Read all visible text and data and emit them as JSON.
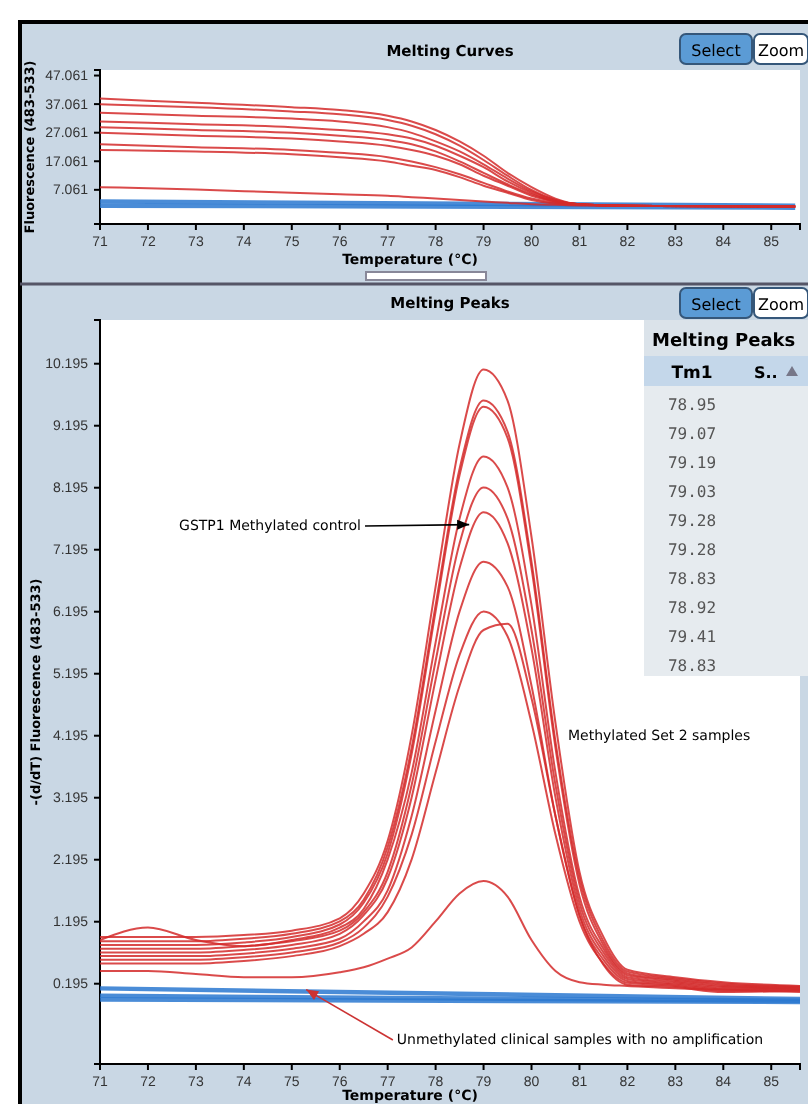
{
  "chart_data": [
    {
      "type": "line",
      "title": "Melting Curves",
      "xlabel": "Temperature (°C)",
      "ylabel": "Fluorescence (483-533)",
      "xlim": [
        71,
        85.6
      ],
      "ylim": [
        -4.9,
        49
      ],
      "xticks": [
        71,
        72,
        73,
        74,
        75,
        76,
        77,
        78,
        79,
        80,
        81,
        82,
        83,
        84,
        85
      ],
      "yticks": [
        7.061,
        17.061,
        27.061,
        37.061,
        47.061
      ],
      "x": [
        71,
        73,
        75,
        76,
        77,
        77.5,
        78,
        78.5,
        79,
        79.5,
        80,
        80.5,
        81,
        82,
        84,
        85.5
      ],
      "annotations": [
        "Select",
        "Zoom"
      ],
      "series": [
        {
          "color": "#2a78d0",
          "x": [
            71,
            85.5
          ],
          "values": [
            3,
            1.5
          ]
        },
        {
          "color": "#2a78d0",
          "x": [
            71,
            85.5
          ],
          "values": [
            1.5,
            0.8
          ]
        },
        {
          "color": "#d42a2a",
          "values": [
            39,
            37.5,
            36,
            35,
            33,
            31,
            28,
            24,
            19,
            13,
            8,
            4,
            2,
            1.5,
            1.3,
            1.2
          ]
        },
        {
          "color": "#d42a2a",
          "values": [
            37,
            36,
            34.5,
            33.5,
            31.5,
            29.5,
            26.5,
            22.5,
            17.5,
            12,
            7,
            3.5,
            2,
            1.5,
            1.3,
            1.2
          ]
        },
        {
          "color": "#d42a2a",
          "values": [
            34,
            33,
            32,
            31,
            29,
            27,
            24,
            20.5,
            16,
            11,
            6.5,
            3.5,
            2,
            1.5,
            1.3,
            1.2
          ]
        },
        {
          "color": "#d42a2a",
          "values": [
            31,
            30,
            29,
            28,
            26.5,
            25,
            22.5,
            19,
            15,
            10,
            6,
            3,
            2,
            1.5,
            1.3,
            1.2
          ]
        },
        {
          "color": "#d42a2a",
          "values": [
            29,
            28,
            27,
            26,
            24.5,
            23,
            20.5,
            17,
            13,
            9,
            5.5,
            3,
            2,
            1.5,
            1.3,
            1.2
          ]
        },
        {
          "color": "#d42a2a",
          "values": [
            27,
            26,
            25,
            24,
            22.5,
            21,
            19,
            16,
            12,
            8.5,
            5,
            3,
            2,
            1.5,
            1.3,
            1.2
          ]
        },
        {
          "color": "#d42a2a",
          "values": [
            23,
            22,
            21,
            20,
            18.5,
            17,
            15,
            12.5,
            9.5,
            6.5,
            4,
            2.5,
            1.8,
            1.5,
            1.3,
            1.2
          ]
        },
        {
          "color": "#d42a2a",
          "values": [
            21,
            20.5,
            19.5,
            18.5,
            17,
            15.5,
            14,
            11.5,
            8.5,
            6,
            3.5,
            2.2,
            1.8,
            1.5,
            1.3,
            1.2
          ]
        },
        {
          "color": "#d42a2a",
          "values": [
            8,
            7.2,
            6,
            5.5,
            5,
            4.5,
            4,
            3.5,
            3,
            2.5,
            2,
            1.8,
            1.6,
            1.5,
            1.3,
            1.2
          ]
        }
      ]
    },
    {
      "type": "line",
      "title": "Melting Peaks",
      "xlabel": "Temperature (°C)",
      "ylabel": "-(d/dT) Fluorescence (483-533)",
      "xlim": [
        71,
        85.6
      ],
      "ylim": [
        -1.1,
        10.9
      ],
      "xticks": [
        71,
        72,
        73,
        74,
        75,
        76,
        77,
        78,
        79,
        80,
        81,
        82,
        83,
        84,
        85
      ],
      "yticks": [
        0.195,
        1.195,
        2.195,
        3.195,
        4.195,
        5.195,
        6.195,
        7.195,
        8.195,
        9.195,
        10.195
      ],
      "x": [
        71,
        72,
        73,
        74,
        75,
        76,
        76.5,
        77,
        77.5,
        78,
        78.5,
        79,
        79.5,
        80,
        80.5,
        81,
        81.5,
        82,
        83,
        84,
        85.6
      ],
      "annotations": [
        "Select",
        "Zoom",
        {
          "text": "GSTP1 Methylated control",
          "x": 78.7,
          "y": 7.6
        },
        "Methylated Set 2 samples",
        {
          "text": "Unmethylated clinical samples with no amplification",
          "x": 75.3,
          "y": 0.1
        }
      ],
      "series": [
        {
          "color": "#2a78d0",
          "x": [
            71,
            85.6
          ],
          "values": [
            0.12,
            -0.05
          ]
        },
        {
          "color": "#2a78d0",
          "x": [
            71,
            85.6
          ],
          "values": [
            0.0,
            -0.08
          ]
        },
        {
          "color": "#2a78d0",
          "x": [
            71,
            85.6
          ],
          "values": [
            -0.06,
            -0.1
          ]
        },
        {
          "color": "#d42a2a",
          "values": [
            0.95,
            0.95,
            0.95,
            0.98,
            1.05,
            1.25,
            1.65,
            2.5,
            4.2,
            6.6,
            8.9,
            10.1,
            9.6,
            7.4,
            4.4,
            2.0,
            0.95,
            0.42,
            0.3,
            0.22,
            0.16
          ]
        },
        {
          "color": "#d42a2a",
          "values": [
            0.88,
            0.88,
            0.88,
            0.92,
            1.0,
            1.2,
            1.55,
            2.4,
            4.0,
            6.3,
            8.5,
            9.6,
            9.1,
            7.0,
            4.1,
            1.9,
            0.88,
            0.39,
            0.28,
            0.2,
            0.15
          ]
        },
        {
          "color": "#d42a2a",
          "values": [
            0.82,
            0.82,
            0.82,
            0.86,
            0.95,
            1.15,
            1.5,
            2.3,
            3.9,
            6.2,
            8.4,
            9.5,
            9.0,
            6.9,
            4.0,
            1.8,
            0.82,
            0.36,
            0.26,
            0.18,
            0.14
          ]
        },
        {
          "color": "#d42a2a",
          "values": [
            0.9,
            1.1,
            0.9,
            0.8,
            0.9,
            1.1,
            1.4,
            2.2,
            3.6,
            5.7,
            7.7,
            8.7,
            8.2,
            6.3,
            3.6,
            1.6,
            0.76,
            0.33,
            0.24,
            0.16,
            0.13
          ]
        },
        {
          "color": "#d42a2a",
          "values": [
            0.76,
            0.76,
            0.76,
            0.8,
            0.88,
            1.05,
            1.35,
            2.0,
            3.4,
            5.4,
            7.3,
            8.2,
            7.7,
            5.9,
            3.4,
            1.5,
            0.7,
            0.3,
            0.22,
            0.14,
            0.12
          ]
        },
        {
          "color": "#d42a2a",
          "values": [
            0.7,
            0.7,
            0.7,
            0.74,
            0.82,
            1.0,
            1.3,
            1.9,
            3.2,
            5.1,
            6.9,
            7.8,
            7.3,
            5.6,
            3.2,
            1.4,
            0.64,
            0.27,
            0.2,
            0.12,
            0.11
          ]
        },
        {
          "color": "#d42a2a",
          "values": [
            0.64,
            0.64,
            0.64,
            0.68,
            0.76,
            0.92,
            1.2,
            1.7,
            2.9,
            4.6,
            6.2,
            7.0,
            6.6,
            5.0,
            2.9,
            1.3,
            0.58,
            0.24,
            0.18,
            0.1,
            0.1
          ]
        },
        {
          "color": "#d42a2a",
          "values": [
            0.58,
            0.58,
            0.58,
            0.62,
            0.7,
            0.86,
            1.1,
            1.6,
            2.6,
            4.1,
            5.5,
            6.2,
            5.8,
            4.4,
            2.6,
            1.2,
            0.52,
            0.21,
            0.16,
            0.08,
            0.09
          ]
        },
        {
          "color": "#d42a2a",
          "values": [
            0.52,
            0.52,
            0.52,
            0.56,
            0.64,
            0.8,
            1.0,
            1.35,
            2.2,
            3.6,
            5.0,
            5.9,
            6.0,
            4.8,
            2.9,
            1.3,
            0.5,
            0.18,
            0.14,
            0.06,
            0.08
          ]
        },
        {
          "color": "#d42a2a",
          "values": [
            0.4,
            0.4,
            0.35,
            0.3,
            0.3,
            0.38,
            0.46,
            0.6,
            0.78,
            1.2,
            1.65,
            1.85,
            1.6,
            0.9,
            0.4,
            0.22,
            0.18,
            0.16,
            0.12,
            0.1,
            0.06
          ]
        }
      ]
    },
    {
      "type": "other",
      "title": "Melting Peaks",
      "annotations": [
        "Tm1",
        "S..",
        "78.95",
        "79.07",
        "79.19",
        "79.03",
        "79.28",
        "79.28",
        "78.83",
        "78.92",
        "79.41",
        "78.83"
      ]
    }
  ]
}
